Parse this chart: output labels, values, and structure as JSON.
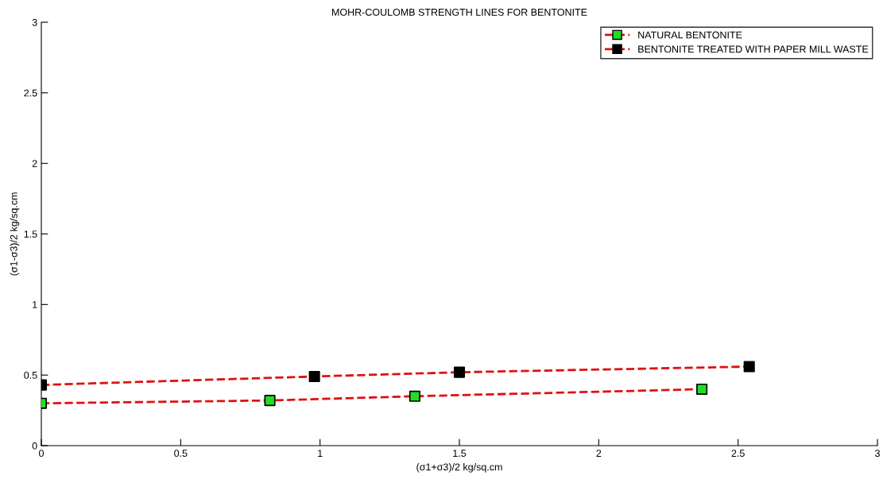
{
  "chart_data": {
    "type": "line",
    "title": "MOHR-COULOMB STRENGTH LINES FOR BENTONITE",
    "xlabel": "(σ1+σ3)/2 kg/sq.cm",
    "ylabel": "(σ1-σ3)/2 kg/sq.cm",
    "xlim": [
      0,
      3
    ],
    "ylim": [
      0,
      3
    ],
    "xticks": [
      0,
      0.5,
      1,
      1.5,
      2,
      2.5,
      3
    ],
    "yticks": [
      0,
      0.5,
      1,
      1.5,
      2,
      2.5,
      3
    ],
    "grid": false,
    "legend": "top right",
    "marker": "square",
    "line_style": "dashed",
    "series": [
      {
        "name": "NATURAL BENTONITE",
        "color": "#e01010",
        "colors": [
          "#22dd22",
          "#22dd22",
          "#22dd22",
          "#22dd22"
        ],
        "x": [
          0,
          0.82,
          1.34,
          2.37
        ],
        "values": [
          0.3,
          0.32,
          0.35,
          0.4
        ]
      },
      {
        "name": "BENTONITE TREATED WITH PAPER MILL WASTE",
        "color": "#e01010",
        "colors": [
          "#000000",
          "#000000",
          "#000000",
          "#000000"
        ],
        "x": [
          0,
          0.98,
          1.5,
          2.54
        ],
        "values": [
          0.43,
          0.49,
          0.52,
          0.56
        ]
      }
    ]
  }
}
